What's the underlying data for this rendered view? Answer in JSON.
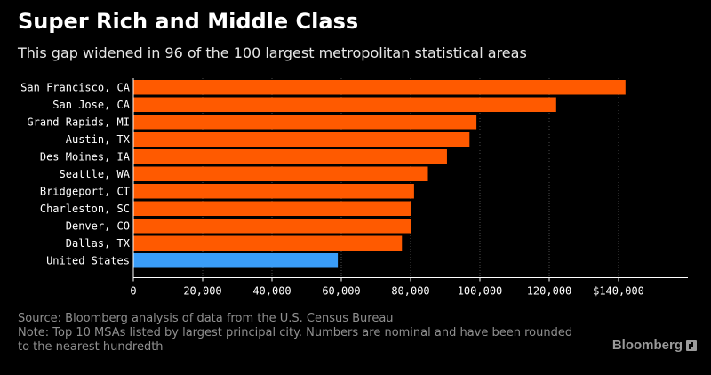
{
  "chart_data": {
    "type": "bar",
    "orientation": "horizontal",
    "title": "Super Rich and Middle Class",
    "subtitle": "This gap widened in 96 of the 100 largest metropolitan statistical areas",
    "categories": [
      "San Francisco, CA",
      "San Jose, CA",
      "Grand Rapids, MI",
      "Austin, TX",
      "Des Moines, IA",
      "Seattle, WA",
      "Bridgeport, CT",
      "Charleston, SC",
      "Denver, CO",
      "Dallas, TX",
      "United States"
    ],
    "values": [
      142000,
      122000,
      99000,
      97000,
      90500,
      85000,
      81000,
      80000,
      80000,
      77500,
      59000
    ],
    "bar_colors": [
      "#ff5a00",
      "#ff5a00",
      "#ff5a00",
      "#ff5a00",
      "#ff5a00",
      "#ff5a00",
      "#ff5a00",
      "#ff5a00",
      "#ff5a00",
      "#ff5a00",
      "#3a9df8"
    ],
    "xlim": [
      0,
      160000
    ],
    "xticks": [
      0,
      20000,
      40000,
      60000,
      80000,
      100000,
      120000,
      140000
    ],
    "xtick_labels": [
      "0",
      "20,000",
      "40,000",
      "60,000",
      "80,000",
      "100,000",
      "120,000",
      "$140,000"
    ],
    "grid": true,
    "xlabel": "",
    "ylabel": ""
  },
  "footer": {
    "source": "Source: Bloomberg analysis of data from the U.S. Census Bureau",
    "note": "Note: Top 10 MSAs listed by largest principal city. Numbers are nominal and have been rounded to the nearest hundredth",
    "brand": "Bloomberg"
  }
}
